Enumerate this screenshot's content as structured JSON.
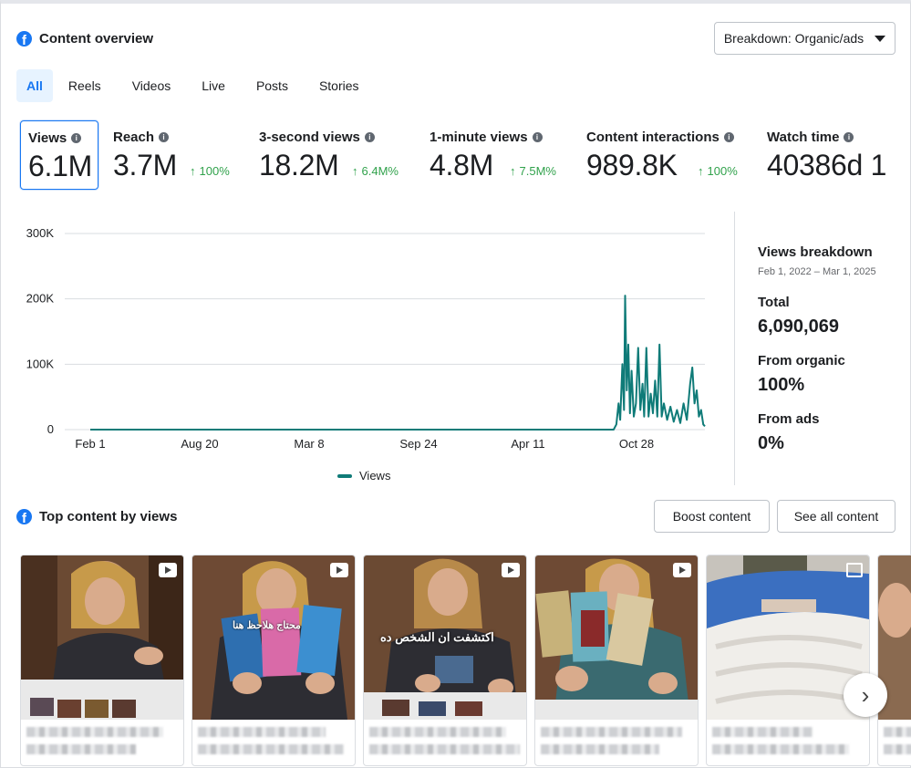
{
  "header": {
    "title": "Content overview",
    "breakdown_button": "Breakdown: Organic/ads"
  },
  "tabs": [
    {
      "label": "All",
      "active": true
    },
    {
      "label": "Reels"
    },
    {
      "label": "Videos"
    },
    {
      "label": "Live"
    },
    {
      "label": "Posts"
    },
    {
      "label": "Stories"
    }
  ],
  "metrics": [
    {
      "label": "Views",
      "value": "6.1M",
      "delta": ""
    },
    {
      "label": "Reach",
      "value": "3.7M",
      "delta": "100%"
    },
    {
      "label": "3-second views",
      "value": "18.2M",
      "delta": "6.4M%"
    },
    {
      "label": "1-minute views",
      "value": "4.8M",
      "delta": "7.5M%"
    },
    {
      "label": "Content interactions",
      "value": "989.8K",
      "delta": "100%"
    },
    {
      "label": "Watch time",
      "value": "40386d 1",
      "delta": ""
    }
  ],
  "chart_data": {
    "type": "line",
    "x_ticks": [
      "Feb 1",
      "Aug 20",
      "Mar 8",
      "Sep 24",
      "Apr 11",
      "Oct 28"
    ],
    "y_ticks": [
      "0",
      "100K",
      "200K",
      "300K"
    ],
    "ylim": [
      0,
      300000
    ],
    "legend": "Views",
    "series": [
      {
        "name": "Views",
        "color": "#0f7b78",
        "x_range": [
          "2022-02-01",
          "2025-03-01"
        ],
        "description": "Flat at 0 from Feb 1, 2022 until ~Sep 2024, then spiky activity",
        "points": [
          [
            "2022-02-01",
            0
          ],
          [
            "2024-09-15",
            0
          ],
          [
            "2024-09-20",
            8000
          ],
          [
            "2024-09-24",
            40000
          ],
          [
            "2024-09-27",
            15000
          ],
          [
            "2024-10-01",
            100000
          ],
          [
            "2024-10-04",
            30000
          ],
          [
            "2024-10-06",
            205000
          ],
          [
            "2024-10-09",
            60000
          ],
          [
            "2024-10-12",
            130000
          ],
          [
            "2024-10-15",
            25000
          ],
          [
            "2024-10-18",
            90000
          ],
          [
            "2024-10-22",
            20000
          ],
          [
            "2024-10-26",
            40000
          ],
          [
            "2024-10-30",
            125000
          ],
          [
            "2024-11-03",
            30000
          ],
          [
            "2024-11-07",
            70000
          ],
          [
            "2024-11-10",
            20000
          ],
          [
            "2024-11-14",
            125000
          ],
          [
            "2024-11-18",
            20000
          ],
          [
            "2024-11-22",
            55000
          ],
          [
            "2024-11-26",
            25000
          ],
          [
            "2024-11-30",
            75000
          ],
          [
            "2024-12-04",
            20000
          ],
          [
            "2024-12-08",
            130000
          ],
          [
            "2024-12-12",
            20000
          ],
          [
            "2024-12-16",
            40000
          ],
          [
            "2024-12-22",
            15000
          ],
          [
            "2024-12-28",
            35000
          ],
          [
            "2025-01-03",
            12000
          ],
          [
            "2025-01-09",
            30000
          ],
          [
            "2025-01-15",
            10000
          ],
          [
            "2025-01-21",
            40000
          ],
          [
            "2025-01-27",
            15000
          ],
          [
            "2025-02-02",
            70000
          ],
          [
            "2025-02-06",
            95000
          ],
          [
            "2025-02-10",
            40000
          ],
          [
            "2025-02-14",
            60000
          ],
          [
            "2025-02-18",
            20000
          ],
          [
            "2025-02-22",
            30000
          ],
          [
            "2025-02-26",
            8000
          ],
          [
            "2025-03-01",
            5000
          ]
        ]
      }
    ]
  },
  "breakdown": {
    "title": "Views breakdown",
    "range": "Feb 1, 2022 – Mar 1, 2025",
    "total_label": "Total",
    "total_value": "6,090,069",
    "organic_label": "From organic",
    "organic_value": "100%",
    "ads_label": "From ads",
    "ads_value": "0%"
  },
  "top_content": {
    "title": "Top content by views",
    "boost_button": "Boost content",
    "see_all_button": "See all content",
    "cards": [
      {
        "type": "video",
        "overlay_text": ""
      },
      {
        "type": "video",
        "overlay_text": "محتاج هلاحظ هنا"
      },
      {
        "type": "video",
        "overlay_text": "اكتشفت ان الشخص ده"
      },
      {
        "type": "video",
        "overlay_text": ""
      },
      {
        "type": "photo",
        "overlay_text": ""
      }
    ]
  }
}
